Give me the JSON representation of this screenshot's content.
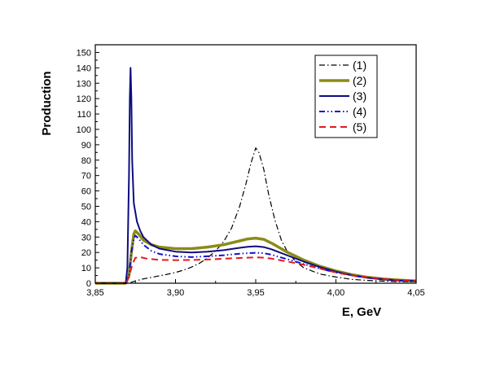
{
  "chart_data": {
    "type": "line",
    "title": "",
    "xlabel": "E, GeV",
    "ylabel": "Production",
    "xlim": [
      3.85,
      4.05
    ],
    "ylim": [
      0,
      155
    ],
    "x_ticks": [
      3.85,
      3.9,
      3.95,
      4.0,
      4.05
    ],
    "x_tick_labels": [
      "3,85",
      "3,90",
      "3,95",
      "4,00",
      "4,05"
    ],
    "y_ticks": [
      0,
      10,
      20,
      30,
      40,
      50,
      60,
      70,
      80,
      90,
      100,
      110,
      120,
      130,
      140,
      150
    ],
    "y_tick_labels": [
      "0",
      "10",
      "20",
      "30",
      "40",
      "50",
      "60",
      "70",
      "80",
      "90",
      "100",
      "110",
      "120",
      "130",
      "140",
      "150"
    ],
    "grid": false,
    "legend_position": "top-right",
    "series": [
      {
        "name": "(1)",
        "color": "#000000",
        "style": "dashdot",
        "width": 1.2,
        "points": [
          [
            3.85,
            0
          ],
          [
            3.87,
            0
          ],
          [
            3.872,
            0.5
          ],
          [
            3.875,
            1.5
          ],
          [
            3.88,
            2.8
          ],
          [
            3.885,
            3.8
          ],
          [
            3.89,
            4.8
          ],
          [
            3.895,
            5.8
          ],
          [
            3.9,
            7
          ],
          [
            3.905,
            8.5
          ],
          [
            3.91,
            10.5
          ],
          [
            3.915,
            13
          ],
          [
            3.92,
            16.5
          ],
          [
            3.925,
            21
          ],
          [
            3.93,
            27
          ],
          [
            3.935,
            36
          ],
          [
            3.94,
            50
          ],
          [
            3.944,
            65
          ],
          [
            3.947,
            78
          ],
          [
            3.95,
            88
          ],
          [
            3.952,
            85
          ],
          [
            3.955,
            74
          ],
          [
            3.958,
            58
          ],
          [
            3.962,
            41
          ],
          [
            3.966,
            28
          ],
          [
            3.97,
            20
          ],
          [
            3.975,
            14
          ],
          [
            3.98,
            10
          ],
          [
            3.99,
            6
          ],
          [
            4.0,
            4
          ],
          [
            4.01,
            2.5
          ],
          [
            4.02,
            1.8
          ],
          [
            4.03,
            1.3
          ],
          [
            4.04,
            1
          ],
          [
            4.05,
            0.8
          ]
        ]
      },
      {
        "name": "(2)",
        "color": "#8b8b17",
        "style": "solid",
        "width": 3.5,
        "points": [
          [
            3.85,
            0
          ],
          [
            3.869,
            0
          ],
          [
            3.871,
            5
          ],
          [
            3.8725,
            20
          ],
          [
            3.874,
            32
          ],
          [
            3.875,
            34
          ],
          [
            3.877,
            32
          ],
          [
            3.88,
            28
          ],
          [
            3.885,
            25
          ],
          [
            3.89,
            23.5
          ],
          [
            3.9,
            22.5
          ],
          [
            3.91,
            22.5
          ],
          [
            3.92,
            23.5
          ],
          [
            3.93,
            25
          ],
          [
            3.94,
            27.5
          ],
          [
            3.945,
            28.8
          ],
          [
            3.95,
            29.3
          ],
          [
            3.955,
            28.5
          ],
          [
            3.96,
            26
          ],
          [
            3.965,
            23
          ],
          [
            3.97,
            20
          ],
          [
            3.98,
            15
          ],
          [
            3.99,
            11
          ],
          [
            4.0,
            8
          ],
          [
            4.01,
            5.5
          ],
          [
            4.02,
            3.8
          ],
          [
            4.03,
            2.7
          ],
          [
            4.04,
            2
          ],
          [
            4.05,
            1.5
          ]
        ]
      },
      {
        "name": "(3)",
        "color": "#0d0d80",
        "style": "solid",
        "width": 2,
        "points": [
          [
            3.85,
            0
          ],
          [
            3.869,
            0
          ],
          [
            3.87,
            10
          ],
          [
            3.871,
            70
          ],
          [
            3.8715,
            120
          ],
          [
            3.872,
            140
          ],
          [
            3.8725,
            120
          ],
          [
            3.873,
            80
          ],
          [
            3.874,
            52
          ],
          [
            3.876,
            40
          ],
          [
            3.878,
            34
          ],
          [
            3.88,
            30
          ],
          [
            3.885,
            25
          ],
          [
            3.89,
            22.5
          ],
          [
            3.9,
            20.5
          ],
          [
            3.91,
            20
          ],
          [
            3.92,
            20.5
          ],
          [
            3.93,
            21.5
          ],
          [
            3.94,
            23
          ],
          [
            3.945,
            23.7
          ],
          [
            3.95,
            24
          ],
          [
            3.955,
            23.5
          ],
          [
            3.96,
            22
          ],
          [
            3.965,
            20
          ],
          [
            3.97,
            18
          ],
          [
            3.98,
            14
          ],
          [
            3.99,
            10.5
          ],
          [
            4.0,
            7.5
          ],
          [
            4.01,
            5.2
          ],
          [
            4.02,
            3.6
          ],
          [
            4.03,
            2.5
          ],
          [
            4.04,
            1.8
          ],
          [
            4.05,
            1.3
          ]
        ]
      },
      {
        "name": "(4)",
        "color": "#1010d0",
        "style": "dashdotdot",
        "width": 2,
        "points": [
          [
            3.85,
            0
          ],
          [
            3.869,
            0
          ],
          [
            3.871,
            5
          ],
          [
            3.8725,
            20
          ],
          [
            3.874,
            29
          ],
          [
            3.875,
            31
          ],
          [
            3.877,
            29
          ],
          [
            3.88,
            25
          ],
          [
            3.885,
            21
          ],
          [
            3.89,
            19
          ],
          [
            3.9,
            17.5
          ],
          [
            3.91,
            17
          ],
          [
            3.92,
            17.5
          ],
          [
            3.93,
            18.2
          ],
          [
            3.94,
            19.2
          ],
          [
            3.95,
            19.8
          ],
          [
            3.955,
            19.5
          ],
          [
            3.96,
            18.5
          ],
          [
            3.965,
            17
          ],
          [
            3.97,
            15.5
          ],
          [
            3.98,
            12.5
          ],
          [
            3.99,
            9.5
          ],
          [
            4.0,
            7
          ],
          [
            4.01,
            5
          ],
          [
            4.02,
            3.5
          ],
          [
            4.03,
            2.5
          ],
          [
            4.04,
            1.8
          ],
          [
            4.05,
            1.3
          ]
        ]
      },
      {
        "name": "(5)",
        "color": "#e31a1c",
        "style": "dash",
        "width": 2,
        "points": [
          [
            3.85,
            0
          ],
          [
            3.869,
            0
          ],
          [
            3.871,
            4
          ],
          [
            3.873,
            12
          ],
          [
            3.875,
            16.5
          ],
          [
            3.878,
            17
          ],
          [
            3.882,
            16
          ],
          [
            3.89,
            15.2
          ],
          [
            3.9,
            15
          ],
          [
            3.91,
            15.1
          ],
          [
            3.92,
            15.4
          ],
          [
            3.93,
            15.9
          ],
          [
            3.94,
            16.4
          ],
          [
            3.95,
            16.8
          ],
          [
            3.955,
            16.6
          ],
          [
            3.96,
            16
          ],
          [
            3.965,
            15
          ],
          [
            3.97,
            14
          ],
          [
            3.98,
            12
          ],
          [
            3.99,
            9.5
          ],
          [
            4.0,
            7
          ],
          [
            4.01,
            5
          ],
          [
            4.02,
            3.8
          ],
          [
            4.03,
            2.8
          ],
          [
            4.04,
            2
          ],
          [
            4.05,
            1.5
          ]
        ]
      }
    ]
  }
}
